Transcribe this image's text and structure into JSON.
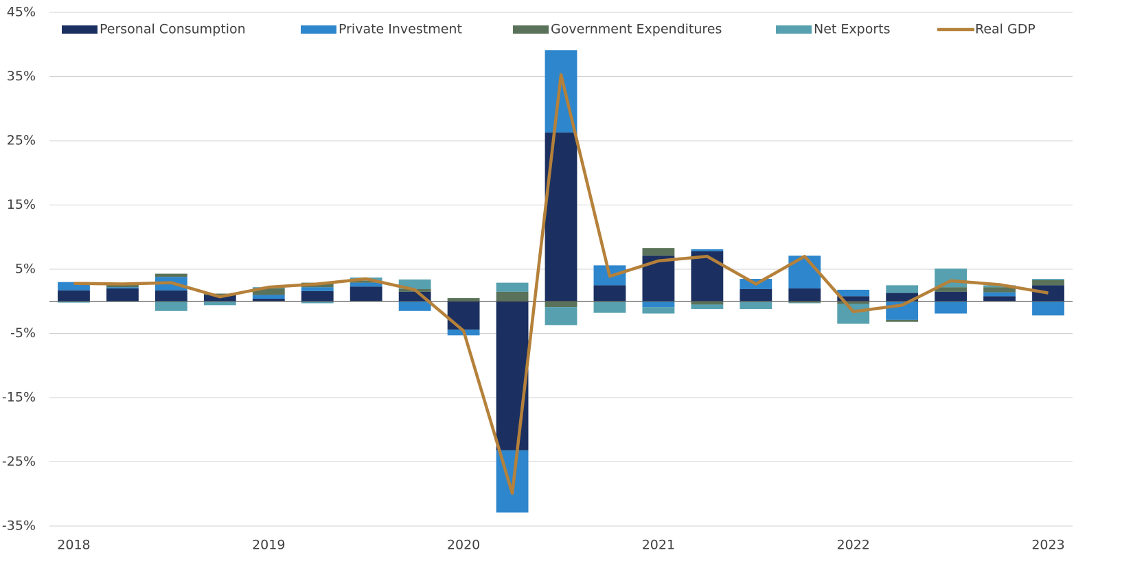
{
  "chart_data": {
    "type": "bar",
    "stacked": true,
    "legend": "top",
    "grid": true,
    "categories": [
      "2018",
      null,
      null,
      null,
      "2019",
      null,
      null,
      null,
      "2020",
      null,
      null,
      null,
      "2021",
      null,
      null,
      null,
      "2022",
      null,
      null,
      null,
      "2023"
    ],
    "ylim": [
      -35,
      45
    ],
    "yticks": [
      {
        "value": 45,
        "label": "45%"
      },
      {
        "value": 35,
        "label": "35%"
      },
      {
        "value": 25,
        "label": "25%"
      },
      {
        "value": 15,
        "label": "15%"
      },
      {
        "value": 5,
        "label": "5%"
      },
      {
        "value": -5,
        "label": "-5%"
      },
      {
        "value": -15,
        "label": "-15%"
      },
      {
        "value": -25,
        "label": "-25%"
      },
      {
        "value": -35,
        "label": "-35%"
      }
    ],
    "series": [
      {
        "name": "Personal Consumption",
        "color": "#1b3060",
        "values": [
          1.7,
          2.0,
          1.7,
          1.0,
          0.4,
          1.6,
          2.3,
          1.5,
          -4.4,
          -23.2,
          26.3,
          2.5,
          7.1,
          7.8,
          1.9,
          2.0,
          0.8,
          1.3,
          1.5,
          0.8,
          2.5
        ]
      },
      {
        "name": "Private Investment",
        "color": "#2e86cc",
        "values": [
          1.3,
          0.2,
          2.1,
          -0.1,
          0.6,
          0.6,
          0.6,
          -1.5,
          -0.9,
          -9.7,
          12.8,
          3.1,
          -0.9,
          0.3,
          1.6,
          5.1,
          1.0,
          -2.9,
          -1.9,
          0.6,
          -2.2
        ]
      },
      {
        "name": "Government Expenditures",
        "color": "#5a7259",
        "values": [
          0.0,
          0.5,
          0.5,
          0.2,
          1.0,
          0.7,
          0.3,
          0.4,
          0.5,
          1.5,
          -0.9,
          -0.1,
          1.2,
          -0.5,
          -0.1,
          -0.2,
          -0.4,
          -0.3,
          0.7,
          0.8,
          0.8
        ]
      },
      {
        "name": "Net Exports",
        "color": "#56a0b0",
        "values": [
          -0.2,
          -0.1,
          -1.5,
          -0.5,
          0.2,
          -0.3,
          0.5,
          1.5,
          0.0,
          1.4,
          -2.8,
          -1.7,
          -1.0,
          -0.7,
          -1.1,
          -0.1,
          -3.1,
          1.2,
          2.9,
          0.3,
          0.2
        ]
      },
      {
        "name": "Real GDP",
        "type": "line",
        "color": "#b5813a",
        "values": [
          2.8,
          2.7,
          2.9,
          0.7,
          2.2,
          2.7,
          3.5,
          1.8,
          -4.6,
          -29.9,
          35.3,
          3.9,
          6.3,
          7.0,
          2.7,
          7.0,
          -1.6,
          -0.6,
          3.2,
          2.6,
          1.3
        ]
      }
    ]
  }
}
